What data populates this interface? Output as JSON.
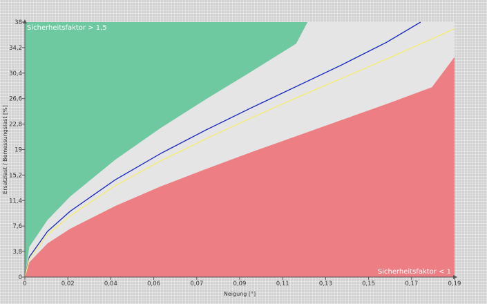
{
  "chart_data": {
    "type": "area",
    "xlabel": "Neigung [°]",
    "ylabel": "Ersatzlast / Bemessungslast [%]",
    "xlim": [
      0,
      0.19
    ],
    "ylim": [
      0,
      38
    ],
    "x_tick_labels": [
      "0",
      "0,02",
      "0,04",
      "0,06",
      "0,07",
      "0,09",
      "0,11",
      "0,13",
      "0,15",
      "0,17",
      "0,19"
    ],
    "y_tick_labels": [
      "0",
      "3,8",
      "7,6",
      "11,4",
      "15,2",
      "19",
      "22,8",
      "26,6",
      "30,4",
      "34,2",
      "38"
    ],
    "zone_labels": {
      "upper": "Sicherheitsfaktor > 1,5",
      "lower": "Sicherheitsfaktor < 1"
    },
    "zones": [
      {
        "id": "safety-gt-1.5",
        "color": "#6ec8a0",
        "boundary_x": [
          0,
          0.002,
          0.01,
          0.02,
          0.04,
          0.06,
          0.08,
          0.1,
          0.12,
          0.125
        ],
        "boundary_y": [
          0,
          4.5,
          8.5,
          12.0,
          17.5,
          22.2,
          26.5,
          30.6,
          34.8,
          38.0
        ]
      },
      {
        "id": "safety-1-to-1.5",
        "color": "#e5e5e5"
      },
      {
        "id": "safety-lt-1",
        "color": "#ec7e84",
        "boundary_x": [
          0,
          0.002,
          0.01,
          0.02,
          0.04,
          0.06,
          0.08,
          0.1,
          0.12,
          0.14,
          0.16,
          0.18,
          0.19
        ],
        "boundary_y": [
          0,
          2.2,
          5.0,
          7.2,
          10.6,
          13.5,
          16.1,
          18.6,
          21.0,
          23.4,
          25.8,
          28.3,
          32.8
        ]
      }
    ],
    "series": [
      {
        "color": "#1f2fbf",
        "x": [
          0,
          0.002,
          0.01,
          0.02,
          0.04,
          0.06,
          0.08,
          0.1,
          0.12,
          0.14,
          0.16,
          0.175
        ],
        "y": [
          0,
          3.0,
          6.8,
          9.8,
          14.5,
          18.4,
          21.9,
          25.2,
          28.4,
          31.6,
          35.0,
          38.0
        ]
      },
      {
        "color": "#f5ec75",
        "x": [
          0,
          0.002,
          0.01,
          0.02,
          0.04,
          0.06,
          0.08,
          0.1,
          0.12,
          0.14,
          0.16,
          0.18,
          0.19
        ],
        "y": [
          0,
          2.7,
          6.3,
          9.1,
          13.6,
          17.3,
          20.6,
          23.7,
          26.7,
          29.6,
          32.5,
          35.5,
          37.0
        ]
      }
    ]
  }
}
